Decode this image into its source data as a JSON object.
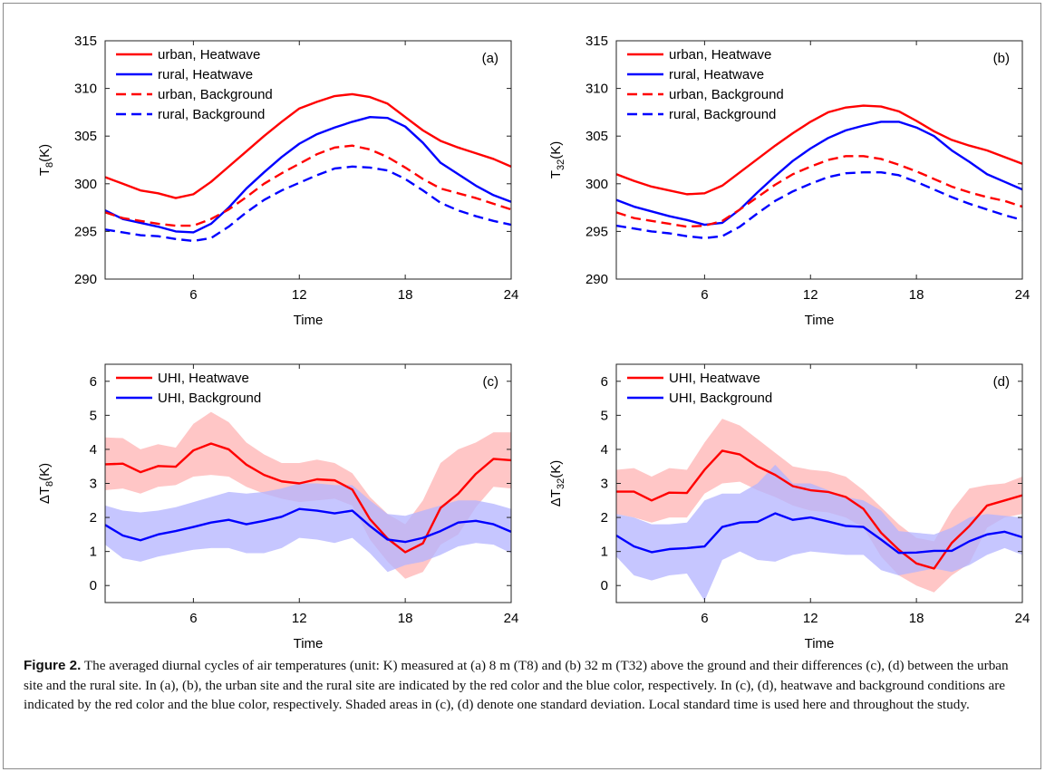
{
  "caption": {
    "label": "Figure 2.",
    "text": "The averaged diurnal cycles of air temperatures (unit: K) measured at (a) 8 m (T8) and (b) 32 m (T32) above the ground and their differences (c), (d) between the urban site and the rural site. In (a), (b), the urban site and the rural site are indicated by the red color and the blue color, respectively. In (c), (d), heatwave and background conditions are indicated by the red color and the blue color, respectively. Shaded areas in (c), (d) denote one standard deviation. Local standard time is used here and throughout the study."
  },
  "colors": {
    "red": "#ff0000",
    "blue": "#0000ff",
    "red_fill": "#ffb3b3",
    "blue_fill": "#b3b3ff"
  },
  "chart_data": [
    {
      "type": "line",
      "panel_label": "(a)",
      "xlabel": "Time",
      "ylabel_main": "T",
      "ylabel_sub": "8",
      "ylabel_unit": "(K)",
      "xlim": [
        1,
        24
      ],
      "ylim": [
        290,
        315
      ],
      "xticks": [
        6,
        12,
        18,
        24
      ],
      "yticks": [
        290,
        295,
        300,
        305,
        310,
        315
      ],
      "legend_position": "top-left",
      "x": [
        1,
        2,
        3,
        4,
        5,
        6,
        7,
        8,
        9,
        10,
        11,
        12,
        13,
        14,
        15,
        16,
        17,
        18,
        19,
        20,
        21,
        22,
        23,
        24
      ],
      "series": [
        {
          "name": "urban, Heatwave",
          "color": "red",
          "dash": false,
          "values": [
            300.7,
            300.0,
            299.3,
            299.0,
            298.5,
            298.9,
            300.2,
            301.8,
            303.4,
            305.0,
            306.5,
            307.9,
            308.6,
            309.2,
            309.4,
            309.1,
            308.4,
            307.0,
            305.6,
            304.5,
            303.8,
            303.2,
            302.6,
            301.8
          ]
        },
        {
          "name": "rural, Heatwave",
          "color": "blue",
          "dash": false,
          "values": [
            297.2,
            296.3,
            295.9,
            295.5,
            295.0,
            294.9,
            295.8,
            297.5,
            299.5,
            301.2,
            302.8,
            304.2,
            305.2,
            305.9,
            306.5,
            307.0,
            306.9,
            306.0,
            304.3,
            302.2,
            301.0,
            299.8,
            298.8,
            298.1
          ]
        },
        {
          "name": "urban, Background",
          "color": "red",
          "dash": true,
          "values": [
            297.0,
            296.4,
            296.1,
            295.8,
            295.6,
            295.6,
            296.3,
            297.3,
            298.6,
            300.0,
            301.1,
            302.1,
            303.1,
            303.8,
            304.0,
            303.6,
            302.8,
            301.7,
            300.5,
            299.5,
            299.0,
            298.5,
            297.9,
            297.3
          ]
        },
        {
          "name": "rural, Background",
          "color": "blue",
          "dash": true,
          "values": [
            295.2,
            294.9,
            294.6,
            294.5,
            294.2,
            294.0,
            294.3,
            295.5,
            297.0,
            298.3,
            299.3,
            300.1,
            300.9,
            301.6,
            301.8,
            301.7,
            301.4,
            300.5,
            299.3,
            298.0,
            297.2,
            296.6,
            296.1,
            295.7
          ]
        }
      ]
    },
    {
      "type": "line",
      "panel_label": "(b)",
      "xlabel": "Time",
      "ylabel_main": "T",
      "ylabel_sub": "32",
      "ylabel_unit": "(K)",
      "xlim": [
        1,
        24
      ],
      "ylim": [
        290,
        315
      ],
      "xticks": [
        6,
        12,
        18,
        24
      ],
      "yticks": [
        290,
        295,
        300,
        305,
        310,
        315
      ],
      "legend_position": "top-left",
      "x": [
        1,
        2,
        3,
        4,
        5,
        6,
        7,
        8,
        9,
        10,
        11,
        12,
        13,
        14,
        15,
        16,
        17,
        18,
        19,
        20,
        21,
        22,
        23,
        24
      ],
      "series": [
        {
          "name": "urban, Heatwave",
          "color": "red",
          "dash": false,
          "values": [
            301.0,
            300.3,
            299.7,
            299.3,
            298.9,
            299.0,
            299.8,
            301.2,
            302.6,
            304.0,
            305.3,
            306.5,
            307.5,
            308.0,
            308.2,
            308.1,
            307.6,
            306.6,
            305.5,
            304.6,
            304.0,
            303.5,
            302.8,
            302.1
          ]
        },
        {
          "name": "rural, Heatwave",
          "color": "blue",
          "dash": false,
          "values": [
            298.3,
            297.6,
            297.1,
            296.6,
            296.2,
            295.7,
            295.9,
            297.3,
            299.1,
            300.8,
            302.4,
            303.7,
            304.8,
            305.6,
            306.1,
            306.5,
            306.5,
            305.9,
            305.0,
            303.5,
            302.3,
            301.0,
            300.2,
            299.4
          ]
        },
        {
          "name": "urban, Background",
          "color": "red",
          "dash": true,
          "values": [
            297.0,
            296.4,
            296.1,
            295.8,
            295.5,
            295.6,
            296.1,
            297.3,
            298.6,
            299.9,
            301.0,
            301.8,
            302.5,
            302.9,
            302.9,
            302.6,
            302.0,
            301.3,
            300.5,
            299.7,
            299.1,
            298.6,
            298.2,
            297.6
          ]
        },
        {
          "name": "rural, Background",
          "color": "blue",
          "dash": true,
          "values": [
            295.6,
            295.3,
            295.0,
            294.8,
            294.5,
            294.3,
            294.5,
            295.5,
            296.9,
            298.2,
            299.2,
            300.0,
            300.7,
            301.1,
            301.2,
            301.2,
            300.9,
            300.2,
            299.4,
            298.6,
            297.9,
            297.3,
            296.7,
            296.2
          ]
        }
      ]
    },
    {
      "type": "line",
      "panel_label": "(c)",
      "xlabel": "Time",
      "ylabel_main": "ΔT",
      "ylabel_sub": "8",
      "ylabel_unit": "(K)",
      "xlim": [
        1,
        24
      ],
      "ylim": [
        -0.5,
        6.5
      ],
      "xticks": [
        6,
        12,
        18,
        24
      ],
      "yticks": [
        0,
        1,
        2,
        3,
        4,
        5,
        6
      ],
      "legend_position": "top-left",
      "x": [
        1,
        2,
        3,
        4,
        5,
        6,
        7,
        8,
        9,
        10,
        11,
        12,
        13,
        14,
        15,
        16,
        17,
        18,
        19,
        20,
        21,
        22,
        23,
        24
      ],
      "series": [
        {
          "name": "UHI, Heatwave",
          "color": "red",
          "dash": false,
          "values": [
            3.56,
            3.58,
            3.33,
            3.51,
            3.49,
            3.97,
            4.17,
            4.0,
            3.55,
            3.25,
            3.06,
            3.0,
            3.12,
            3.09,
            2.82,
            1.95,
            1.38,
            0.98,
            1.24,
            2.28,
            2.7,
            3.28,
            3.72,
            3.68
          ],
          "upper": [
            4.35,
            4.33,
            4.0,
            4.15,
            4.05,
            4.75,
            5.1,
            4.8,
            4.2,
            3.85,
            3.6,
            3.6,
            3.7,
            3.6,
            3.3,
            2.6,
            2.1,
            1.8,
            2.5,
            3.6,
            4.0,
            4.2,
            4.5,
            4.5
          ],
          "lower": [
            2.8,
            2.85,
            2.7,
            2.9,
            2.95,
            3.2,
            3.25,
            3.2,
            2.9,
            2.7,
            2.55,
            2.45,
            2.5,
            2.55,
            2.35,
            1.35,
            0.7,
            0.2,
            0.4,
            1.2,
            1.5,
            2.3,
            2.9,
            2.85
          ]
        },
        {
          "name": "UHI, Background",
          "color": "blue",
          "dash": false,
          "values": [
            1.78,
            1.47,
            1.33,
            1.5,
            1.6,
            1.72,
            1.85,
            1.93,
            1.8,
            1.9,
            2.02,
            2.25,
            2.2,
            2.12,
            2.2,
            1.75,
            1.35,
            1.28,
            1.4,
            1.6,
            1.85,
            1.9,
            1.8,
            1.58
          ],
          "upper": [
            2.35,
            2.2,
            2.15,
            2.2,
            2.3,
            2.45,
            2.6,
            2.75,
            2.7,
            2.75,
            2.85,
            3.0,
            3.0,
            2.95,
            2.95,
            2.5,
            2.1,
            2.05,
            2.2,
            2.35,
            2.5,
            2.5,
            2.4,
            2.25
          ],
          "lower": [
            1.2,
            0.8,
            0.7,
            0.85,
            0.95,
            1.05,
            1.1,
            1.1,
            0.95,
            0.95,
            1.1,
            1.4,
            1.35,
            1.25,
            1.4,
            0.95,
            0.4,
            0.6,
            0.7,
            0.9,
            1.15,
            1.25,
            1.2,
            0.95
          ]
        }
      ]
    },
    {
      "type": "line",
      "panel_label": "(d)",
      "xlabel": "Time",
      "ylabel_main": "ΔT",
      "ylabel_sub": "32",
      "ylabel_unit": "(K)",
      "xlim": [
        1,
        24
      ],
      "ylim": [
        -0.5,
        6.5
      ],
      "xticks": [
        6,
        12,
        18,
        24
      ],
      "yticks": [
        0,
        1,
        2,
        3,
        4,
        5,
        6
      ],
      "legend_position": "top-left",
      "x": [
        1,
        2,
        3,
        4,
        5,
        6,
        7,
        8,
        9,
        10,
        11,
        12,
        13,
        14,
        15,
        16,
        17,
        18,
        19,
        20,
        21,
        22,
        23,
        24
      ],
      "series": [
        {
          "name": "UHI, Heatwave",
          "color": "red",
          "dash": false,
          "values": [
            2.76,
            2.76,
            2.5,
            2.73,
            2.72,
            3.4,
            3.96,
            3.85,
            3.5,
            3.25,
            2.92,
            2.8,
            2.75,
            2.6,
            2.25,
            1.55,
            1.05,
            0.65,
            0.5,
            1.25,
            1.75,
            2.35,
            2.5,
            2.65
          ],
          "upper": [
            3.4,
            3.45,
            3.2,
            3.45,
            3.4,
            4.2,
            4.9,
            4.7,
            4.3,
            3.9,
            3.5,
            3.4,
            3.35,
            3.2,
            2.8,
            2.3,
            1.8,
            1.4,
            1.3,
            2.2,
            2.85,
            2.95,
            3.0,
            3.2
          ],
          "lower": [
            2.1,
            2.0,
            1.85,
            2.0,
            2.0,
            2.7,
            3.0,
            3.05,
            2.8,
            2.6,
            2.35,
            2.2,
            2.15,
            2.0,
            1.7,
            0.85,
            0.3,
            0.0,
            -0.2,
            0.3,
            0.65,
            1.7,
            2.0,
            2.1
          ]
        },
        {
          "name": "UHI, Background",
          "color": "blue",
          "dash": false,
          "values": [
            1.47,
            1.15,
            0.98,
            1.07,
            1.1,
            1.15,
            1.72,
            1.85,
            1.87,
            2.12,
            1.93,
            2.0,
            1.88,
            1.75,
            1.72,
            1.35,
            0.96,
            0.97,
            1.02,
            1.02,
            1.3,
            1.5,
            1.58,
            1.42
          ],
          "upper": [
            2.1,
            2.0,
            1.8,
            1.8,
            1.85,
            2.5,
            2.7,
            2.7,
            3.0,
            3.55,
            3.0,
            3.0,
            2.8,
            2.6,
            2.5,
            2.2,
            1.6,
            1.55,
            1.5,
            1.7,
            2.0,
            2.1,
            2.05,
            2.0
          ],
          "lower": [
            0.85,
            0.3,
            0.15,
            0.3,
            0.35,
            -0.45,
            0.75,
            1.0,
            0.75,
            0.7,
            0.9,
            1.0,
            0.95,
            0.9,
            0.9,
            0.45,
            0.3,
            0.4,
            0.5,
            0.4,
            0.6,
            0.9,
            1.1,
            0.9
          ]
        }
      ]
    }
  ]
}
